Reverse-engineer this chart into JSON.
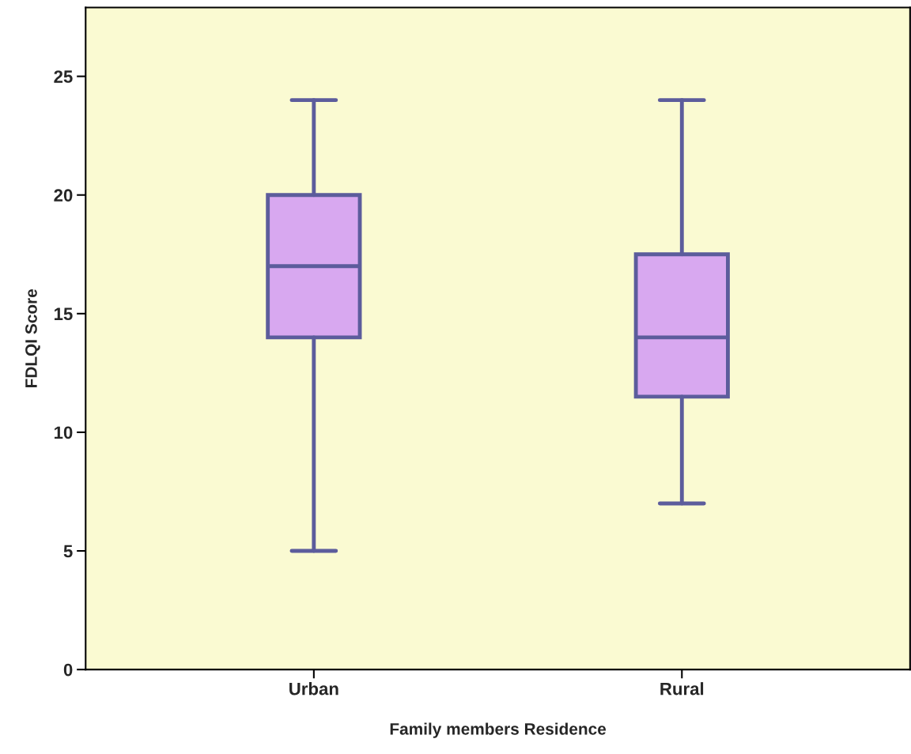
{
  "chart_data": {
    "type": "box",
    "xlabel": "Family members Residence",
    "ylabel": "FDLQI Score",
    "categories": [
      "Urban",
      "Rural"
    ],
    "boxes": [
      {
        "low": 5,
        "q1": 14,
        "median": 17,
        "q3": 20,
        "high": 24
      },
      {
        "low": 7,
        "q1": 11.5,
        "median": 14,
        "q3": 17.5,
        "high": 24
      }
    ],
    "color": "#d8a8f0",
    "ylim": [
      0,
      27.9
    ],
    "yticks": [
      0,
      5,
      10,
      15,
      20,
      25
    ],
    "grid": false
  }
}
